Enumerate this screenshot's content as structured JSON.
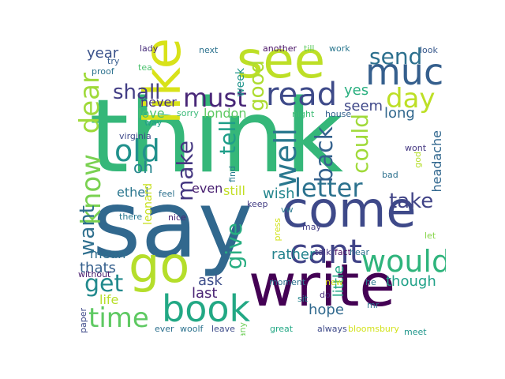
{
  "wordcloud": {
    "words": [
      {
        "text": "think",
        "color": "#35b779"
      },
      {
        "text": "say",
        "color": "#31688e"
      },
      {
        "text": "write",
        "color": "#440154"
      },
      {
        "text": "go",
        "color": "#b5de2b"
      },
      {
        "text": "see",
        "color": "#bddf26"
      },
      {
        "text": "like",
        "color": "#d8e219"
      },
      {
        "text": "come",
        "color": "#3e4989"
      },
      {
        "text": "book",
        "color": "#22a884"
      },
      {
        "text": "much",
        "color": "#355f8d"
      },
      {
        "text": "read",
        "color": "#3e4a89"
      },
      {
        "text": "must",
        "color": "#482677"
      },
      {
        "text": "cant",
        "color": "#404387"
      },
      {
        "text": "letter",
        "color": "#2c728e"
      },
      {
        "text": "would",
        "color": "#2fb47c"
      },
      {
        "text": "well",
        "color": "#2a788e"
      },
      {
        "text": "time",
        "color": "#5ec962"
      },
      {
        "text": "dear",
        "color": "#9fda3a"
      },
      {
        "text": "know",
        "color": "#7ad151"
      },
      {
        "text": "day",
        "color": "#bddf26"
      },
      {
        "text": "send",
        "color": "#2d708e"
      },
      {
        "text": "old",
        "color": "#21918c"
      },
      {
        "text": "get",
        "color": "#238a8d"
      },
      {
        "text": "make",
        "color": "#453781"
      },
      {
        "text": "back",
        "color": "#34618d"
      },
      {
        "text": "could",
        "color": "#a0da39"
      },
      {
        "text": "give",
        "color": "#27ad81"
      },
      {
        "text": "tell",
        "color": "#1f9e89"
      },
      {
        "text": "take",
        "color": "#414487"
      },
      {
        "text": "good",
        "color": "#addc30"
      },
      {
        "text": "shall",
        "color": "#433e85"
      },
      {
        "text": "want",
        "color": "#2e6f8e"
      },
      {
        "text": "year",
        "color": "#3b528b"
      },
      {
        "text": "long",
        "color": "#31688e"
      },
      {
        "text": "hope",
        "color": "#30698e"
      },
      {
        "text": "oh",
        "color": "#25858e"
      },
      {
        "text": "yes",
        "color": "#29af7f"
      },
      {
        "text": "seem",
        "color": "#3f4889"
      },
      {
        "text": "london",
        "color": "#5ec962"
      },
      {
        "text": "love",
        "color": "#4ac16d"
      },
      {
        "text": "never",
        "color": "#46317e"
      },
      {
        "text": "even",
        "color": "#481f70"
      },
      {
        "text": "still",
        "color": "#c2df23"
      },
      {
        "text": "wish",
        "color": "#24868e"
      },
      {
        "text": "rather",
        "color": "#25848e"
      },
      {
        "text": "thats",
        "color": "#35608d"
      },
      {
        "text": "ask",
        "color": "#3d4d8a"
      },
      {
        "text": "last",
        "color": "#482173"
      },
      {
        "text": "little",
        "color": "#21a685"
      },
      {
        "text": "though",
        "color": "#1fa188"
      },
      {
        "text": "ethel",
        "color": "#2a768e"
      },
      {
        "text": "mean",
        "color": "#2e6e8e"
      },
      {
        "text": "life",
        "color": "#b8de29"
      },
      {
        "text": "headache",
        "color": "#31678e"
      },
      {
        "text": "leonard",
        "color": "#c8e020"
      },
      {
        "text": "week",
        "color": "#1f948c"
      },
      {
        "text": "lady",
        "color": "#472c7a"
      },
      {
        "text": "next",
        "color": "#2c728e"
      },
      {
        "text": "another",
        "color": "#471164"
      },
      {
        "text": "till",
        "color": "#5ec962"
      },
      {
        "text": "work",
        "color": "#2a778e"
      },
      {
        "text": "look",
        "color": "#38598c"
      },
      {
        "text": "try",
        "color": "#365c8d"
      },
      {
        "text": "tea",
        "color": "#4ac16d"
      },
      {
        "text": "proof",
        "color": "#2c728e"
      },
      {
        "text": "way",
        "color": "#1f9e89"
      },
      {
        "text": "sorry",
        "color": "#39b977"
      },
      {
        "text": "night",
        "color": "#3dbc74"
      },
      {
        "text": "house",
        "color": "#34608d"
      },
      {
        "text": "virginia",
        "color": "#3e4989"
      },
      {
        "text": "find",
        "color": "#287c8e"
      },
      {
        "text": "wont",
        "color": "#453882"
      },
      {
        "text": "god",
        "color": "#b5de2b"
      },
      {
        "text": "bad",
        "color": "#2d718e"
      },
      {
        "text": "feel",
        "color": "#2d718e"
      },
      {
        "text": "keep",
        "color": "#433d84"
      },
      {
        "text": "vw",
        "color": "#2a788e"
      },
      {
        "text": "there",
        "color": "#2a788e"
      },
      {
        "text": "nice",
        "color": "#482576"
      },
      {
        "text": "press",
        "color": "#d2e21b"
      },
      {
        "text": "may",
        "color": "#433e85"
      },
      {
        "text": "let",
        "color": "#86d549"
      },
      {
        "text": "talk",
        "color": "#46337f"
      },
      {
        "text": "fact",
        "color": "#46085c"
      },
      {
        "text": "hear",
        "color": "#2e6f8e"
      },
      {
        "text": "moment",
        "color": "#2c728e"
      },
      {
        "text": "without",
        "color": "#481b6d"
      },
      {
        "text": "new",
        "color": "#d8e219"
      },
      {
        "text": "he",
        "color": "#2a788e"
      },
      {
        "text": "do",
        "color": "#472d7b"
      },
      {
        "text": "sit",
        "color": "#25858e"
      },
      {
        "text": "mr",
        "color": "#2c728e"
      },
      {
        "text": "paper",
        "color": "#3e4989"
      },
      {
        "text": "ever",
        "color": "#2d708e"
      },
      {
        "text": "woolf",
        "color": "#2c728e"
      },
      {
        "text": "leave",
        "color": "#3e4c8a"
      },
      {
        "text": "many",
        "color": "#6ece58"
      },
      {
        "text": "great",
        "color": "#22a884"
      },
      {
        "text": "always",
        "color": "#3e4989"
      },
      {
        "text": "bloomsbury",
        "color": "#d2e21b"
      },
      {
        "text": "meet",
        "color": "#1f968b"
      }
    ]
  }
}
